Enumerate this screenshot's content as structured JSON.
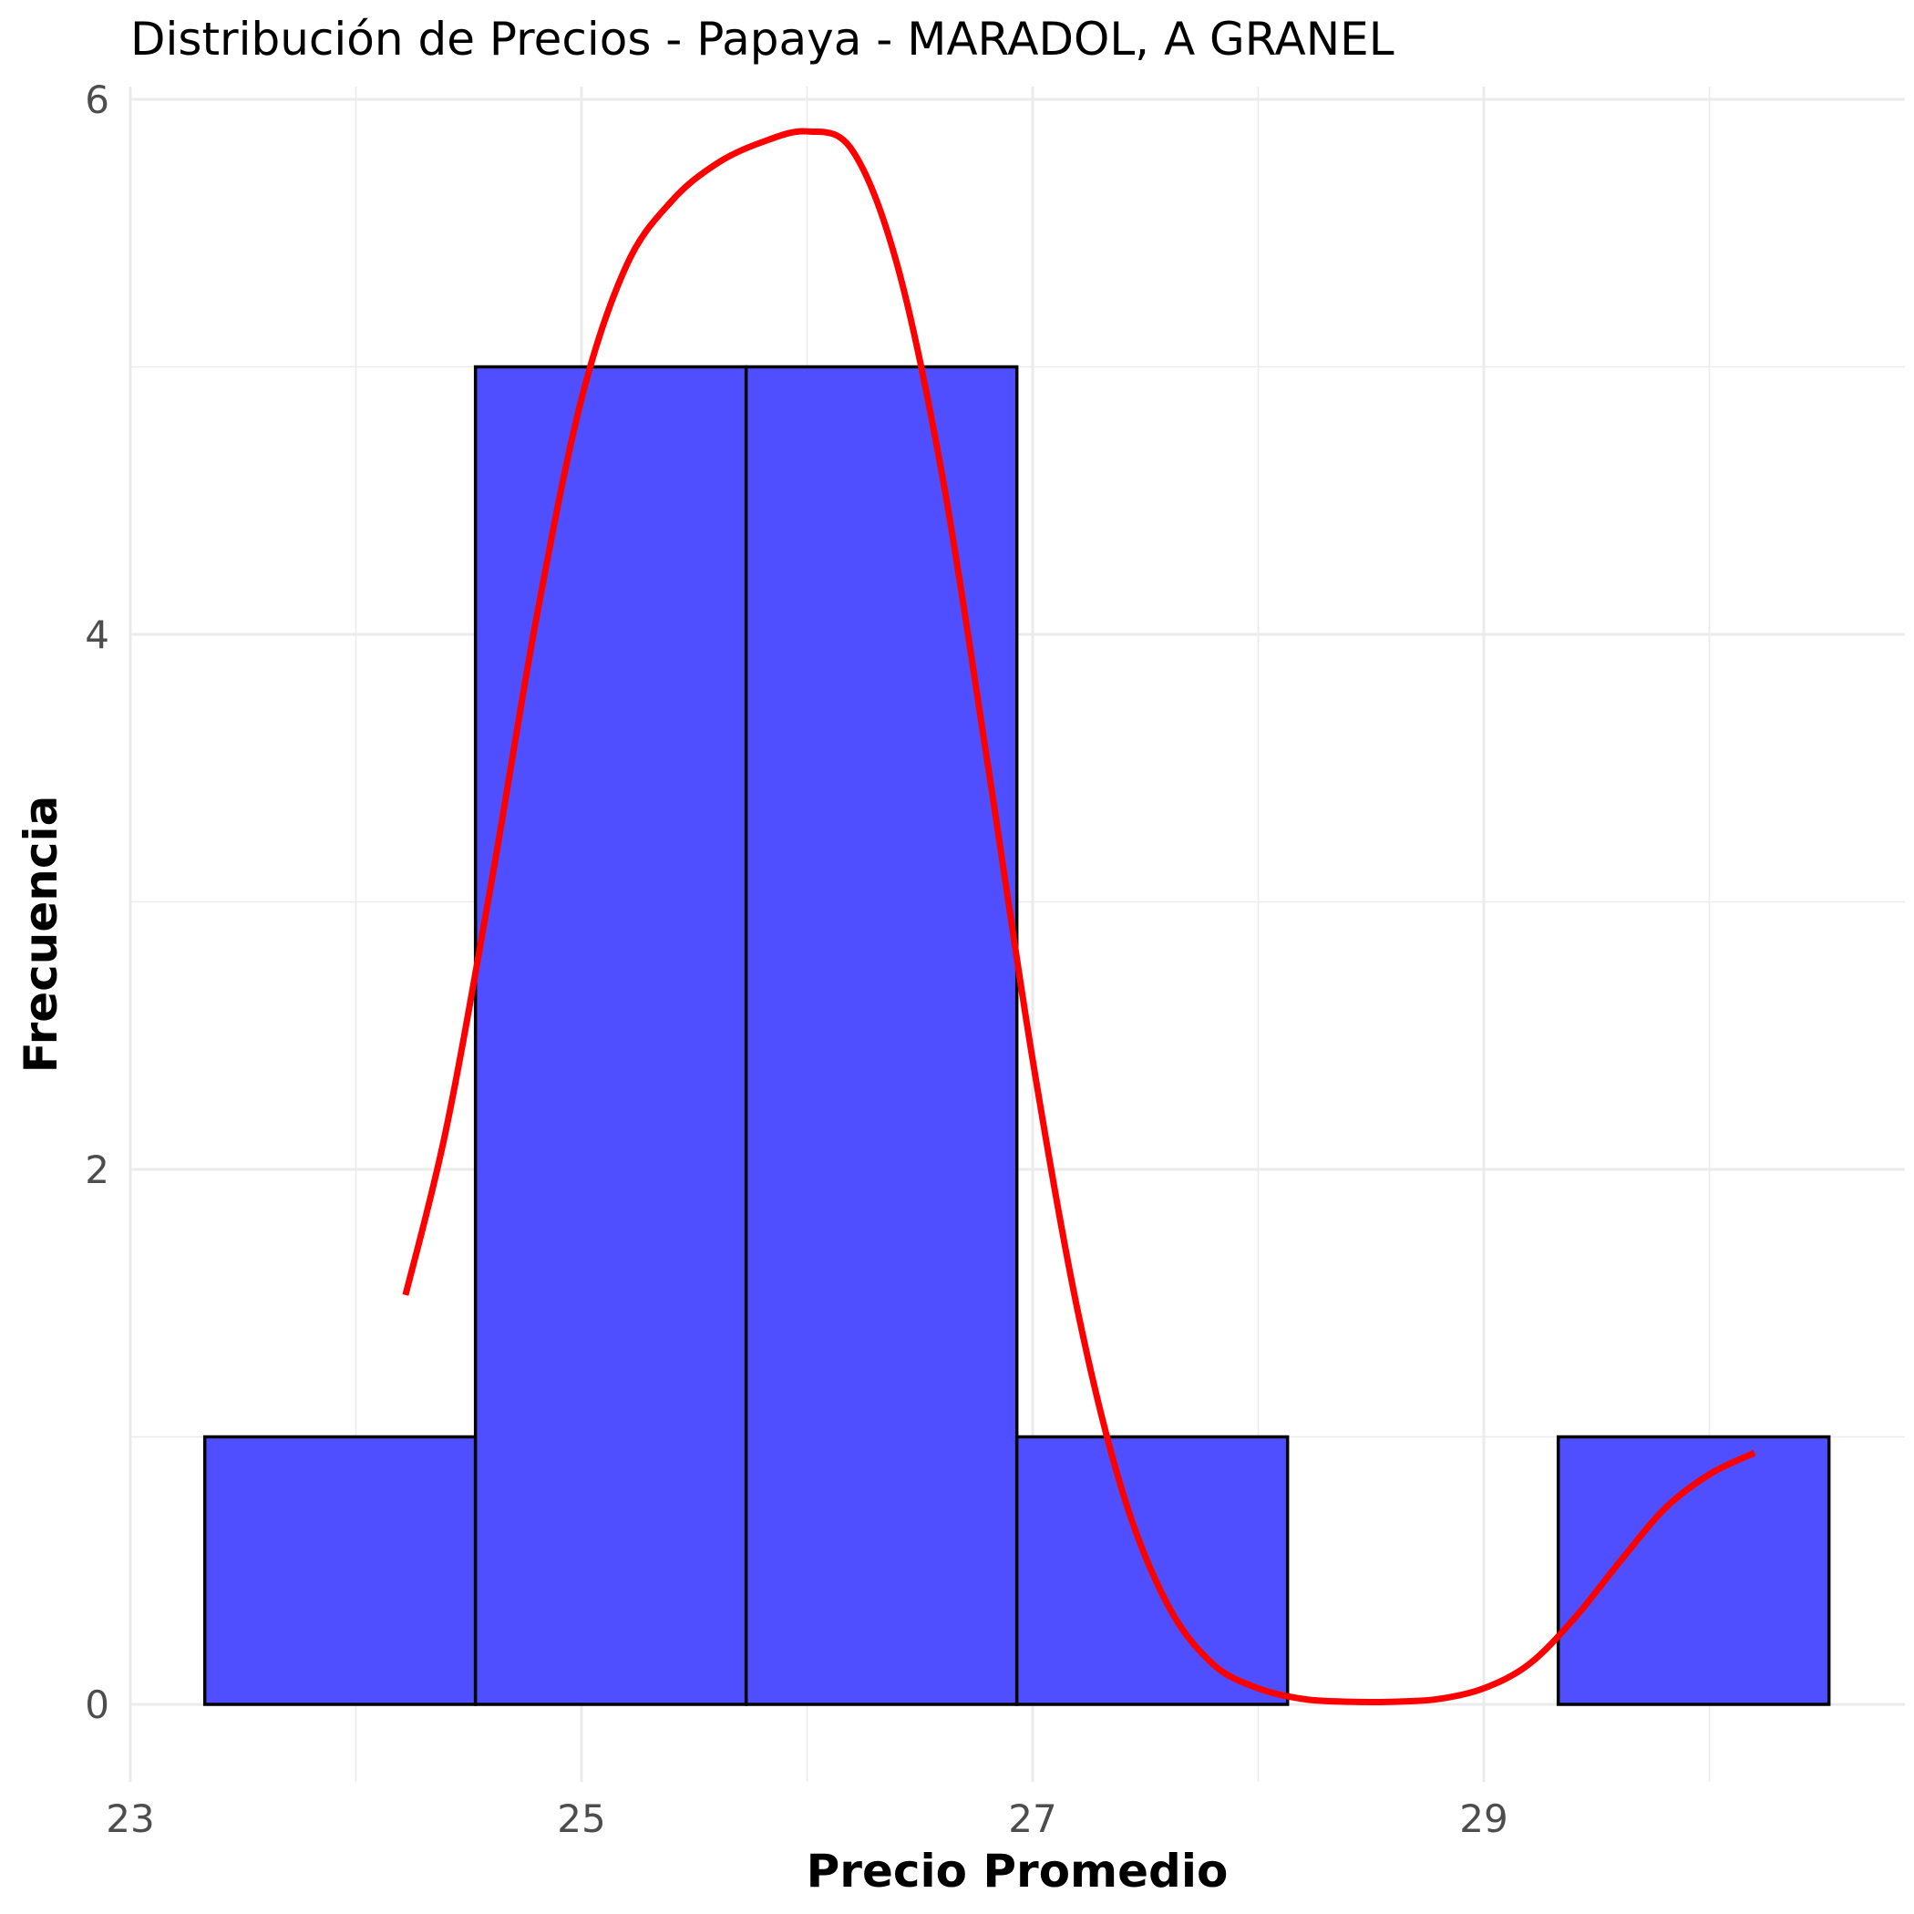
{
  "chart_data": {
    "type": "histogram",
    "title": "Distribución de Precios - Papaya - MARADOL, A GRANEL",
    "xlabel": "Precio Promedio",
    "ylabel": "Frecuencia",
    "xlim": [
      23,
      30.85
    ],
    "ylim": [
      0,
      6
    ],
    "x_ticks": [
      23,
      25,
      27,
      29
    ],
    "y_ticks": [
      0,
      2,
      4,
      6
    ],
    "grid": true,
    "bins": [
      {
        "start": 23.33,
        "end": 24.53,
        "count": 1
      },
      {
        "start": 24.53,
        "end": 25.73,
        "count": 5
      },
      {
        "start": 25.73,
        "end": 26.93,
        "count": 5
      },
      {
        "start": 26.93,
        "end": 28.13,
        "count": 1
      },
      {
        "start": 28.13,
        "end": 29.33,
        "count": 0
      },
      {
        "start": 29.33,
        "end": 30.53,
        "count": 1
      }
    ],
    "bar_color": "#4f4fff",
    "density_line": {
      "color": "#ff0000",
      "x": [
        24.22,
        24.4,
        24.6,
        24.8,
        25.0,
        25.2,
        25.4,
        25.6,
        25.8,
        26.0,
        26.2,
        26.4,
        26.6,
        26.8,
        27.0,
        27.2,
        27.4,
        27.6,
        27.8,
        28.0,
        28.2,
        28.4,
        28.6,
        28.8,
        29.0,
        29.2,
        29.4,
        29.6,
        29.8,
        30.0,
        30.2
      ],
      "y": [
        1.53,
        2.15,
        3.07,
        4.06,
        4.88,
        5.38,
        5.62,
        5.76,
        5.84,
        5.88,
        5.81,
        5.38,
        4.59,
        3.52,
        2.41,
        1.47,
        0.79,
        0.37,
        0.15,
        0.06,
        0.02,
        0.01,
        0.01,
        0.02,
        0.06,
        0.15,
        0.32,
        0.53,
        0.73,
        0.86,
        0.94
      ]
    }
  }
}
